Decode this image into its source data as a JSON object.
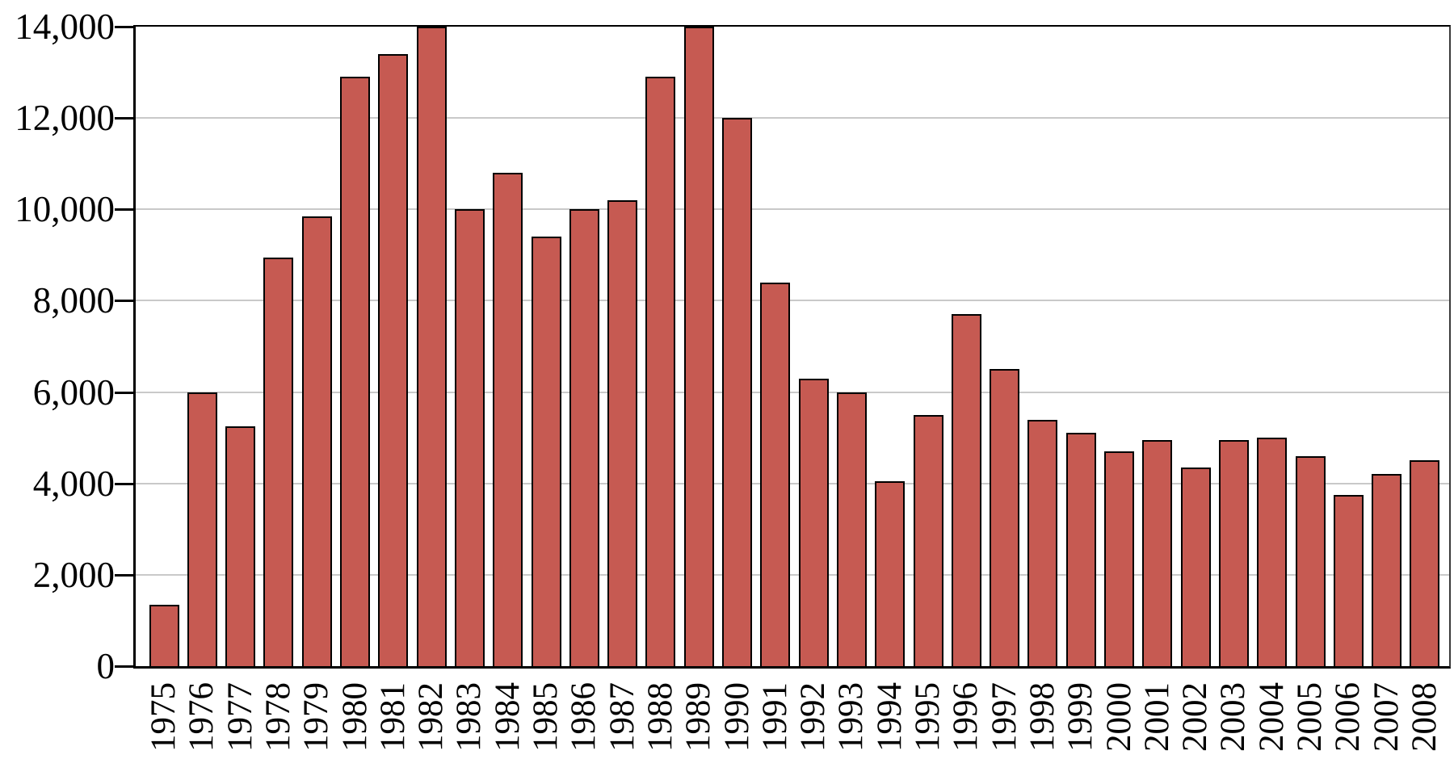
{
  "chart_data": {
    "type": "bar",
    "title": "",
    "xlabel": "",
    "ylabel": "",
    "categories": [
      "1975",
      "1976",
      "1977",
      "1978",
      "1979",
      "1980",
      "1981",
      "1982",
      "1983",
      "1984",
      "1985",
      "1986",
      "1987",
      "1988",
      "1989",
      "1990",
      "1991",
      "1992",
      "1993",
      "1994",
      "1995",
      "1996",
      "1997",
      "1998",
      "1999",
      "2000",
      "2001",
      "2002",
      "2003",
      "2004",
      "2005",
      "2006",
      "2007",
      "2008"
    ],
    "values": [
      1350,
      6000,
      5250,
      8950,
      9850,
      12900,
      13400,
      14000,
      10000,
      10800,
      9400,
      10000,
      10200,
      12900,
      14000,
      12000,
      8400,
      6300,
      6000,
      4050,
      5500,
      7700,
      6500,
      5400,
      5100,
      4700,
      4950,
      4350,
      4950,
      5000,
      4600,
      3750,
      4200,
      4500
    ],
    "ylim": [
      0,
      14000
    ],
    "ytick_interval": 2000,
    "ytick_labels": [
      "0",
      "2,000",
      "4,000",
      "6,000",
      "8,000",
      "10,000",
      "12,000",
      "14,000"
    ],
    "grid": true,
    "legend": "none",
    "colors": {
      "bar_fill": "#c65a52",
      "bar_border": "#000000",
      "gridline": "#c9c9c9",
      "axis": "#000000",
      "background": "#ffffff",
      "text": "#000000"
    }
  }
}
